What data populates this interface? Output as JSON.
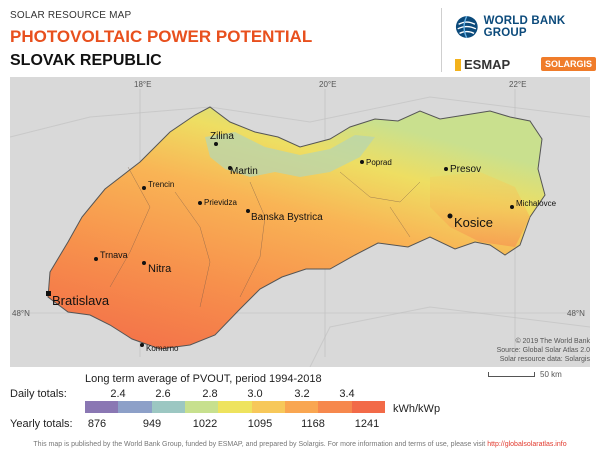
{
  "header": {
    "subtitle": "SOLAR RESOURCE MAP",
    "title": "PHOTOVOLTAIC POWER POTENTIAL",
    "country": "SLOVAK REPUBLIC"
  },
  "logos": {
    "world_bank": "WORLD BANK GROUP",
    "esmap": "ESMAP",
    "solargis": "SOLARGIS"
  },
  "map": {
    "graticule_labels": [
      "18°E",
      "20°E",
      "22°E",
      "48°N",
      "48°N"
    ],
    "cities": [
      {
        "name": "Zilina"
      },
      {
        "name": "Martin"
      },
      {
        "name": "Trencin"
      },
      {
        "name": "Poprad"
      },
      {
        "name": "Presov"
      },
      {
        "name": "Prievidza"
      },
      {
        "name": "Banska Bystrica"
      },
      {
        "name": "Kosice"
      },
      {
        "name": "Michalovce"
      },
      {
        "name": "Trnava"
      },
      {
        "name": "Nitra"
      },
      {
        "name": "Bratislava"
      },
      {
        "name": "Komarno"
      }
    ],
    "credits": [
      "© 2019 The World Bank",
      "Source: Global Solar Atlas 2.0",
      "Solar resource data: Solargis"
    ],
    "scale": "50 km"
  },
  "legend": {
    "title": "Long term average of PVOUT, period 1994-2018",
    "daily_label": "Daily totals:",
    "yearly_label": "Yearly totals:",
    "daily_ticks": [
      "2.4",
      "2.6",
      "2.8",
      "3.0",
      "3.2",
      "3.4"
    ],
    "yearly_ticks": [
      "876",
      "949",
      "1022",
      "1095",
      "1168",
      "1241"
    ],
    "unit": "kWh/kWp",
    "colors": [
      "#8a77b3",
      "#8da0c8",
      "#9cc7c2",
      "#c7e08e",
      "#eee35e",
      "#f7c85a",
      "#f9a651",
      "#f6884d",
      "#f26a48"
    ]
  },
  "footer": {
    "text": "This map is published by the World Bank Group, funded by ESMAP, and prepared by Solargis. For more information and terms of use, please visit",
    "link": "http://globalsolaratlas.info"
  }
}
